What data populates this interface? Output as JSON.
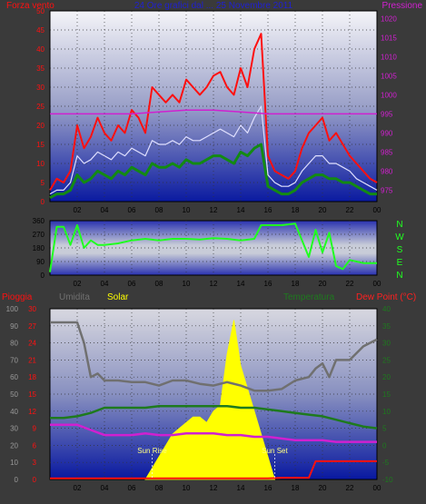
{
  "colors": {
    "background": "#3a3a3a",
    "wind_gust": "#ff1010",
    "wind_avg": "#e0e0ff",
    "wind_min": "#138a13",
    "pressure": "#d020d0",
    "direction": "#20ff20",
    "rain": "#ff1010",
    "humidity": "#707070",
    "solar": "#ffff00",
    "temperature": "#1e7a1e",
    "dewpoint": "#d020d0",
    "title": "#2020d0"
  },
  "chart_data": [
    {
      "type": "line",
      "title": "24 Ore grafici dal ... 25 Novembre 2011",
      "left_label": "Forza vento",
      "right_label": "Pressione",
      "y_left_ticks": [
        "0",
        "5",
        "10",
        "15",
        "20",
        "25",
        "30",
        "35",
        "40",
        "45",
        "50"
      ],
      "y_left_lim": [
        0,
        50
      ],
      "y_right_ticks": [
        "975",
        "980",
        "985",
        "990",
        "995",
        "1000",
        "1005",
        "1010",
        "1015",
        "1020"
      ],
      "y_right_lim": [
        972,
        1022
      ],
      "x_ticks": [
        "02",
        "04",
        "06",
        "08",
        "10",
        "12",
        "14",
        "16",
        "18",
        "20",
        "22",
        "00"
      ],
      "grid": true,
      "series": [
        {
          "name": "Forza vento (raffica)",
          "x": [
            0,
            0.5,
            1,
            1.5,
            2,
            2.5,
            3,
            3.5,
            4,
            4.5,
            5,
            5.5,
            6,
            6.5,
            7,
            7.5,
            8,
            8.5,
            9,
            9.5,
            10,
            10.5,
            11,
            11.5,
            12,
            12.5,
            13,
            13.5,
            14,
            14.5,
            15,
            15.5,
            16,
            16.5,
            17,
            17.5,
            18,
            18.5,
            19,
            19.5,
            20,
            20.5,
            21,
            21.5,
            22,
            22.5,
            23,
            23.5,
            24
          ],
          "values": [
            3,
            6,
            5,
            8,
            20,
            14,
            17,
            22,
            18,
            16,
            20,
            18,
            24,
            22,
            18,
            30,
            28,
            26,
            28,
            26,
            32,
            30,
            28,
            30,
            33,
            34,
            30,
            28,
            35,
            30,
            40,
            44,
            12,
            8,
            7,
            6,
            8,
            14,
            18,
            20,
            22,
            16,
            18,
            15,
            12,
            10,
            8,
            6,
            5
          ]
        },
        {
          "name": "Forza vento (media)",
          "x": [
            0,
            0.5,
            1,
            1.5,
            2,
            2.5,
            3,
            3.5,
            4,
            4.5,
            5,
            5.5,
            6,
            6.5,
            7,
            7.5,
            8,
            8.5,
            9,
            9.5,
            10,
            10.5,
            11,
            11.5,
            12,
            12.5,
            13,
            13.5,
            14,
            14.5,
            15,
            15.5,
            16,
            16.5,
            17,
            17.5,
            18,
            18.5,
            19,
            19.5,
            20,
            20.5,
            21,
            21.5,
            22,
            22.5,
            23,
            23.5,
            24
          ],
          "values": [
            2,
            3,
            3,
            5,
            12,
            10,
            11,
            13,
            12,
            11,
            13,
            12,
            14,
            13,
            12,
            16,
            15,
            15,
            16,
            15,
            17,
            16,
            16,
            17,
            18,
            19,
            18,
            17,
            20,
            18,
            22,
            25,
            7,
            5,
            4,
            4,
            5,
            8,
            10,
            12,
            12,
            10,
            10,
            9,
            8,
            6,
            5,
            4,
            3
          ]
        },
        {
          "name": "Forza vento (minima)",
          "x": [
            0,
            0.5,
            1,
            1.5,
            2,
            2.5,
            3,
            3.5,
            4,
            4.5,
            5,
            5.5,
            6,
            6.5,
            7,
            7.5,
            8,
            8.5,
            9,
            9.5,
            10,
            10.5,
            11,
            11.5,
            12,
            12.5,
            13,
            13.5,
            14,
            14.5,
            15,
            15.5,
            16,
            16.5,
            17,
            17.5,
            18,
            18.5,
            19,
            19.5,
            20,
            20.5,
            21,
            21.5,
            22,
            22.5,
            23,
            23.5,
            24
          ],
          "values": [
            1,
            2,
            2,
            3,
            7,
            5,
            6,
            8,
            7,
            6,
            8,
            7,
            9,
            8,
            7,
            10,
            9,
            9,
            10,
            9,
            11,
            10,
            10,
            11,
            12,
            12,
            11,
            10,
            13,
            12,
            14,
            15,
            4,
            3,
            2,
            2,
            3,
            5,
            6,
            7,
            7,
            6,
            6,
            5,
            5,
            4,
            3,
            2,
            2
          ]
        },
        {
          "name": "Pressione",
          "axis": "right",
          "x": [
            0,
            2,
            4,
            6,
            8,
            10,
            12,
            14,
            16,
            18,
            20,
            22,
            24
          ],
          "values": [
            995,
            995,
            995,
            995,
            995.5,
            996,
            996,
            995.5,
            995,
            995,
            995,
            995,
            995
          ]
        }
      ]
    },
    {
      "type": "line",
      "title": "",
      "y_left_ticks": [
        "0",
        "90",
        "180",
        "270",
        "360"
      ],
      "y_left_lim": [
        0,
        360
      ],
      "right_labels": [
        "N",
        "W",
        "S",
        "E",
        "N"
      ],
      "x_ticks": [
        "02",
        "04",
        "06",
        "08",
        "10",
        "12",
        "14",
        "16",
        "18",
        "20",
        "22",
        "00"
      ],
      "grid": true,
      "series": [
        {
          "name": "Direzione",
          "x": [
            0,
            0.5,
            1,
            1.5,
            2,
            2.5,
            3,
            3.5,
            4,
            5,
            6,
            7,
            8,
            9,
            10,
            11,
            12,
            13,
            14,
            15,
            15.5,
            16,
            17,
            18,
            19,
            19.5,
            20,
            20.5,
            21,
            21.5,
            22,
            22.5,
            23,
            24
          ],
          "values": [
            20,
            320,
            320,
            200,
            330,
            180,
            230,
            200,
            200,
            210,
            230,
            240,
            230,
            240,
            240,
            235,
            245,
            240,
            230,
            240,
            330,
            330,
            330,
            340,
            120,
            300,
            150,
            280,
            60,
            40,
            100,
            90,
            80,
            80
          ]
        }
      ]
    },
    {
      "type": "line",
      "title": "",
      "labels": {
        "rain": "Pioggia",
        "humidity": "Umidita",
        "solar": "Solar",
        "temperature": "Temperatura",
        "dewpoint": "Dew Point (°C)"
      },
      "annotations": [
        "Sun Rise",
        "Sun Set"
      ],
      "y_axis_humidity_ticks": [
        "0",
        "10",
        "20",
        "30",
        "40",
        "50",
        "60",
        "70",
        "80",
        "90",
        "100"
      ],
      "y_axis_rain_ticks": [
        "0",
        "3",
        "6",
        "9",
        "12",
        "15",
        "18",
        "21",
        "24",
        "27",
        "30"
      ],
      "y_axis_temp_ticks": [
        "-10",
        "-5",
        "0",
        "5",
        "10",
        "15",
        "20",
        "25",
        "30",
        "35",
        "40"
      ],
      "x_ticks": [
        "02",
        "04",
        "06",
        "08",
        "10",
        "12",
        "14",
        "16",
        "18",
        "20",
        "22",
        "00"
      ],
      "grid": true,
      "series": [
        {
          "name": "Umidita",
          "x": [
            0,
            1,
            2,
            2.5,
            3,
            3.5,
            4,
            5,
            6,
            7,
            8,
            9,
            10,
            11,
            12,
            13,
            14,
            15,
            16,
            17,
            18,
            19,
            19.5,
            20,
            20.5,
            21,
            22,
            23,
            24
          ],
          "values": [
            92,
            92,
            92,
            80,
            60,
            62,
            58,
            58,
            57,
            57,
            55,
            58,
            58,
            56,
            55,
            57,
            55,
            52,
            52,
            53,
            58,
            60,
            65,
            68,
            60,
            70,
            70,
            78,
            82
          ]
        },
        {
          "name": "Temperatura",
          "x": [
            0,
            1,
            2,
            3,
            4,
            5,
            6,
            7,
            8,
            9,
            10,
            11,
            12,
            13,
            14,
            15,
            16,
            17,
            18,
            19,
            20,
            21,
            22,
            23,
            24
          ],
          "values": [
            8,
            8,
            8.5,
            9.5,
            11,
            11,
            11,
            11,
            11.5,
            11.5,
            11.5,
            11.5,
            11.5,
            11.5,
            11,
            11,
            10.5,
            10,
            9.5,
            9,
            8.5,
            7.5,
            6.5,
            5.5,
            5
          ]
        },
        {
          "name": "Dew Point",
          "x": [
            0,
            1,
            2,
            3,
            4,
            5,
            6,
            7,
            8,
            9,
            10,
            11,
            12,
            13,
            14,
            15,
            16,
            17,
            18,
            19,
            20,
            21,
            22,
            23,
            24
          ],
          "values": [
            6,
            6,
            6,
            4.5,
            3,
            3,
            3,
            3.5,
            3,
            3,
            3.5,
            3.5,
            3.5,
            3,
            3,
            2.5,
            2.5,
            2,
            1.5,
            1.5,
            1.5,
            1,
            1,
            1,
            1
          ]
        },
        {
          "name": "Pioggia",
          "x": [
            0,
            16,
            17,
            18,
            19,
            19.5,
            24
          ],
          "values": [
            0.2,
            0.2,
            0.3,
            0.3,
            0.3,
            3.2,
            3.2
          ]
        },
        {
          "name": "Solar",
          "x": [
            7,
            7.5,
            8,
            8.5,
            9,
            9.5,
            10,
            10.5,
            11,
            11.5,
            12,
            12.5,
            13,
            13.5,
            14,
            14.5,
            15,
            15.5,
            16,
            16.5
          ],
          "values": [
            0,
            2,
            4,
            6,
            8,
            9,
            10,
            11,
            11,
            10,
            12,
            13,
            22,
            28,
            20,
            16,
            12,
            8,
            4,
            0
          ]
        }
      ]
    }
  ]
}
